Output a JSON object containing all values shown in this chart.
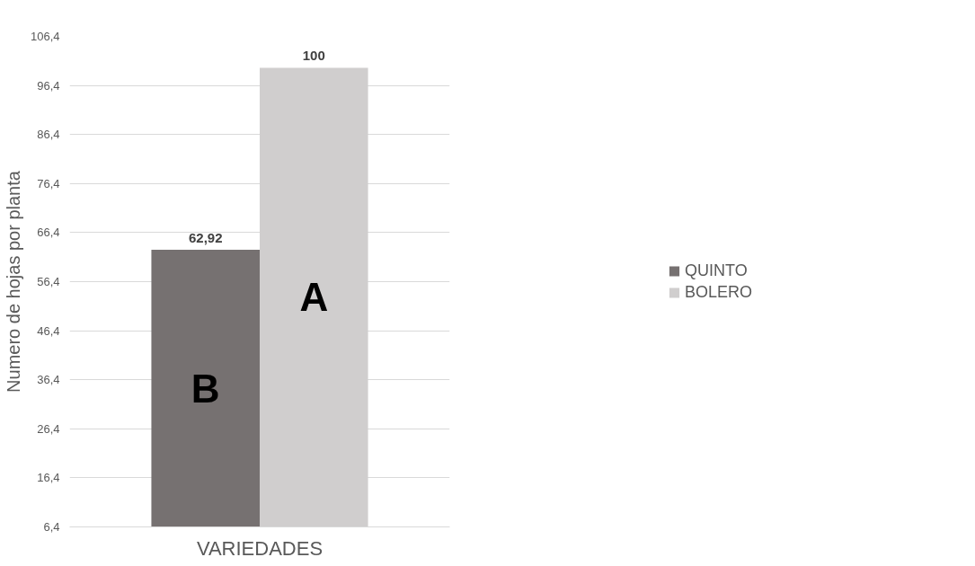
{
  "chart_data": {
    "type": "bar",
    "xlabel": "VARIEDADES",
    "ylabel": "Numero de hojas por planta",
    "categories": [
      null
    ],
    "series": [
      {
        "name": "QUINTO",
        "color": "#767171",
        "values": [
          62.92
        ],
        "value_labels": [
          "62,92"
        ]
      },
      {
        "name": "BOLERO",
        "color": "#d0cece",
        "values": [
          100
        ],
        "value_labels": [
          "100"
        ]
      }
    ],
    "annotations": [
      "B",
      "A"
    ],
    "ylim": [
      6.4,
      106.4
    ],
    "yticks": [
      {
        "value": 6.4,
        "label": "6,4"
      },
      {
        "value": 16.4,
        "label": "16,4"
      },
      {
        "value": 26.4,
        "label": "26,4"
      },
      {
        "value": 36.4,
        "label": "36,4"
      },
      {
        "value": 46.4,
        "label": "46,4"
      },
      {
        "value": 56.4,
        "label": "56,4"
      },
      {
        "value": 66.4,
        "label": "66,4"
      },
      {
        "value": 76.4,
        "label": "76,4"
      },
      {
        "value": 86.4,
        "label": "86,4"
      },
      {
        "value": 96.4,
        "label": "96,4"
      },
      {
        "value": 106.4,
        "label": "106,4"
      }
    ],
    "grid": "y",
    "legend": "right"
  }
}
